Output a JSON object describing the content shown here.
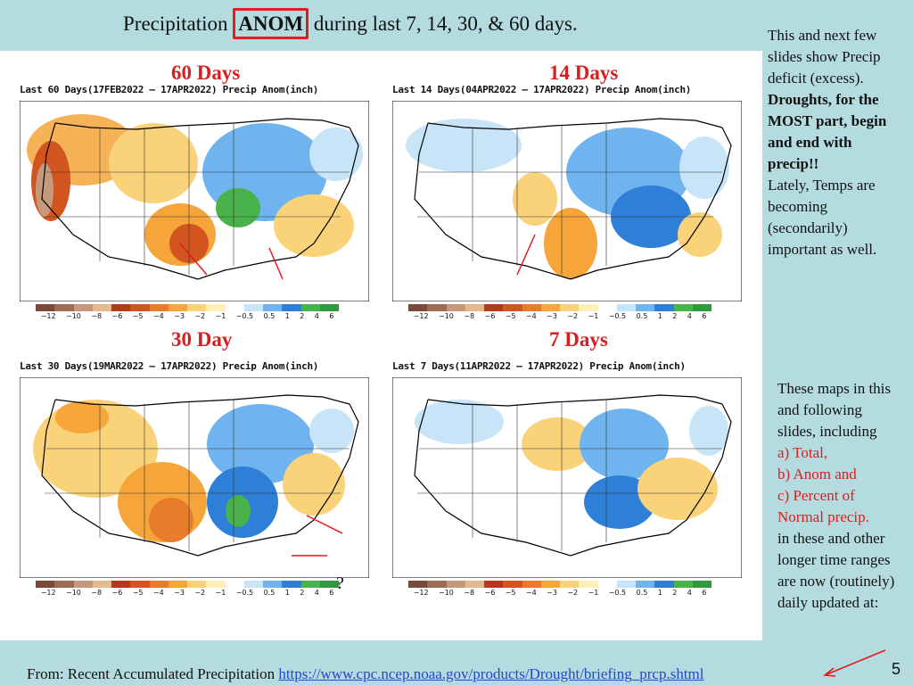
{
  "title": {
    "before": "Precipitation ",
    "highlight": "ANOM",
    "after": " during last 7, 14, 30, & 60 days."
  },
  "maps": [
    {
      "label": "60 Days",
      "caption": "Last 60 Days(17FEB2022 – 17APR2022) Precip Anom(inch)"
    },
    {
      "label": "14 Days",
      "caption": "Last 14 Days(04APR2022 – 17APR2022) Precip Anom(inch)"
    },
    {
      "label": "30 Day",
      "caption": "Last 30 Days(19MAR2022 – 17APR2022) Precip Anom(inch)"
    },
    {
      "label": "7 Days",
      "caption": "Last 7 Days(11APR2022 – 17APR2022) Precip Anom(inch)"
    }
  ],
  "colorbar": {
    "ticks": [
      "−12",
      "−10",
      "−8",
      "−6",
      "−5",
      "−4",
      "−3",
      "−2",
      "−1",
      "−0.5",
      "0.5",
      "1",
      "2",
      "4",
      "6"
    ],
    "colors": [
      "#7a4a3a",
      "#9e6a52",
      "#c59a7c",
      "#e8b88e",
      "#b03a1a",
      "#d25520",
      "#e87c2a",
      "#f5a53a",
      "#fad27a",
      "#fff0b8",
      "#ffffff",
      "#c8e4f8",
      "#6fb4ee",
      "#2e7fd8",
      "#4ab24a",
      "#2e9a3e"
    ]
  },
  "question_mark": "?",
  "side1": {
    "p1": "This and next few slides show Precip deficit (excess).",
    "p2": "Droughts, for the MOST part, begin and end with precip!!",
    "p3": "Lately, Temps are becoming (secondarily) important as well."
  },
  "side2": {
    "intro": "These maps in this and following slides, including",
    "a": "a) Total,",
    "b": "b) Anom and",
    "c": "c) Percent of Normal precip.",
    "outro": "in these and other longer time ranges are now (routinely) daily updated at:"
  },
  "footer": {
    "prefix": "From: Recent Accumulated Precipitation ",
    "url": "https://www.cpc.ncep.noaa.gov/products/Drought/briefing_prcp.shtml"
  },
  "page_number": "5"
}
